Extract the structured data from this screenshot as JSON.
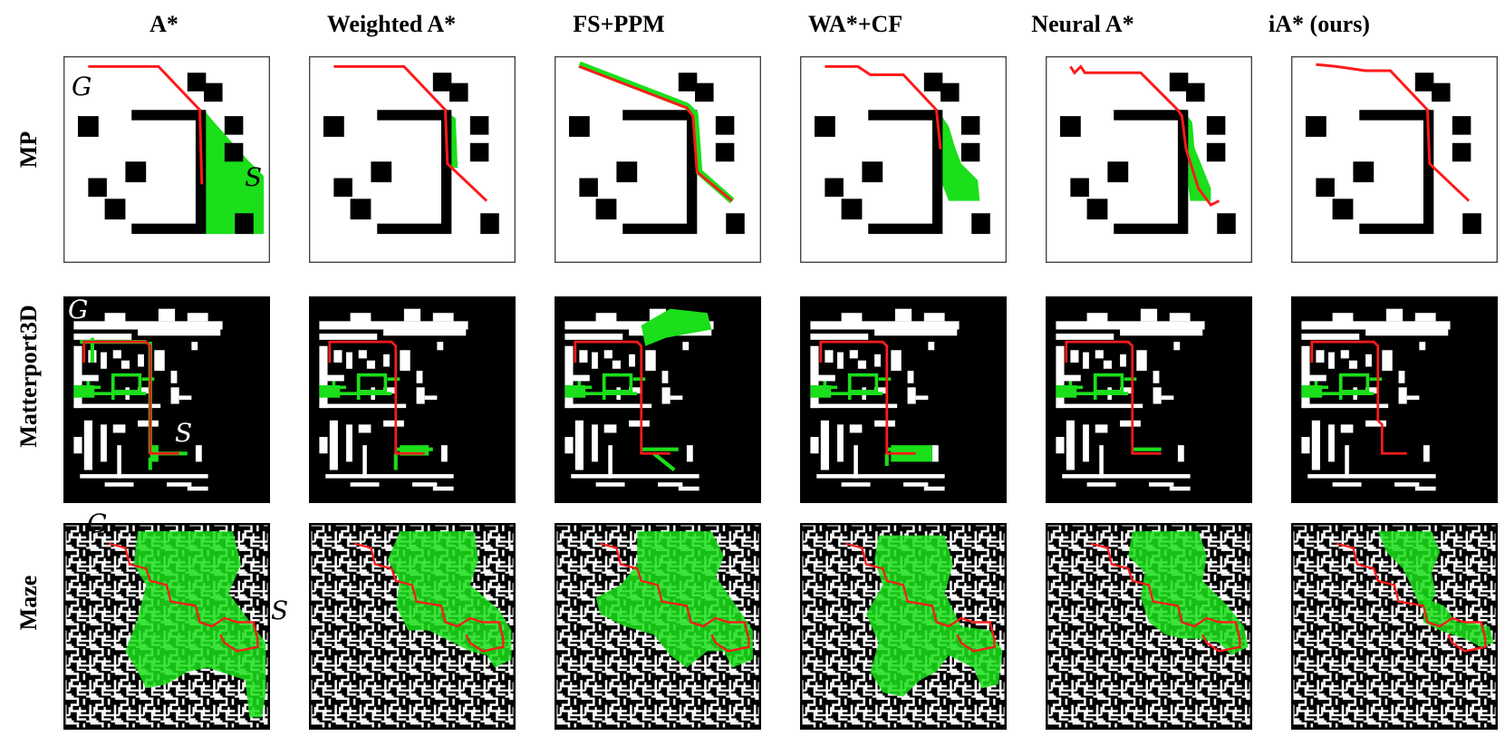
{
  "columns": [
    {
      "label": "A*"
    },
    {
      "label": "Weighted A*"
    },
    {
      "label": "FS+PPM"
    },
    {
      "label": "WA*+CF"
    },
    {
      "label": "Neural A*"
    },
    {
      "label": "iA* (ours)"
    }
  ],
  "rows": [
    {
      "label": "MP"
    },
    {
      "label": "Matterport3D"
    },
    {
      "label": "Maze"
    }
  ],
  "markers": {
    "goal": "G",
    "start": "S"
  },
  "colors": {
    "path": "#ff1a1a",
    "explored": "#1adf1a",
    "obstacle": "#000000",
    "free": "#ffffff"
  }
}
